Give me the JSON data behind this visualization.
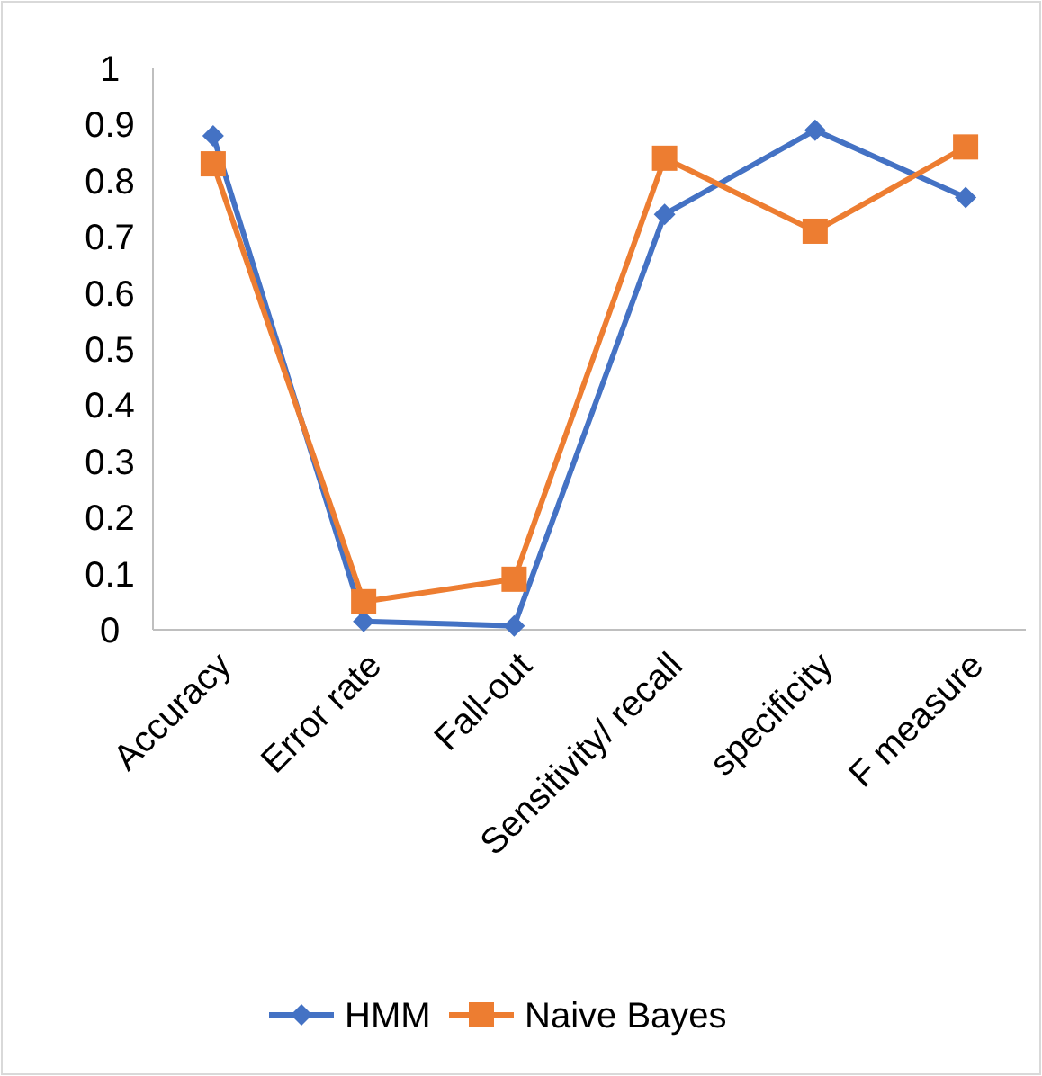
{
  "chart_data": {
    "type": "line",
    "categories": [
      "Accuracy",
      "Error rate",
      "Fall-out",
      "Sensitivity/ recall",
      "specificity",
      "F measure"
    ],
    "series": [
      {
        "name": "HMM",
        "color": "#4472c4",
        "marker": "diamond",
        "values": [
          0.88,
          0.015,
          0.007,
          0.74,
          0.89,
          0.77
        ]
      },
      {
        "name": "Naive Bayes",
        "color": "#ed7d31",
        "marker": "square",
        "values": [
          0.83,
          0.05,
          0.09,
          0.84,
          0.71,
          0.86
        ]
      }
    ],
    "ylim": [
      0,
      1
    ],
    "yticks": [
      0,
      0.1,
      0.2,
      0.3,
      0.4,
      0.5,
      0.6,
      0.7,
      0.8,
      0.9,
      1
    ],
    "grid": false,
    "legend": "bottom"
  }
}
